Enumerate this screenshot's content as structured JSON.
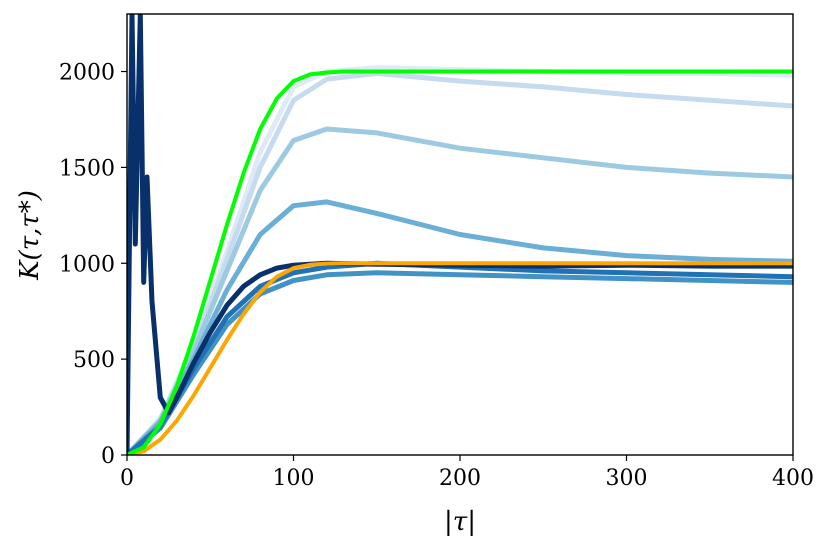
{
  "chart_data": {
    "type": "line",
    "xlabel": "|τ|",
    "ylabel": "K(τ,τ*)",
    "xlim": [
      0,
      400
    ],
    "ylim": [
      0,
      2300
    ],
    "x_ticks": [
      "0",
      "100",
      "200",
      "300",
      "400"
    ],
    "y_ticks": [
      "0",
      "500",
      "1000",
      "1500",
      "2000"
    ],
    "grid": false,
    "legend": "none",
    "series": [
      {
        "color": "#00ff00",
        "x": [
          0,
          10,
          20,
          30,
          40,
          50,
          60,
          70,
          80,
          90,
          100,
          110,
          120,
          130,
          140,
          150,
          200,
          250,
          300,
          350,
          400
        ],
        "values": [
          0,
          40,
          160,
          360,
          620,
          910,
          1200,
          1470,
          1700,
          1860,
          1950,
          1985,
          1995,
          2000,
          2000,
          2000,
          2000,
          2000,
          2000,
          2000,
          2000
        ]
      },
      {
        "color": "#ffa500",
        "x": [
          0,
          10,
          20,
          30,
          40,
          50,
          60,
          70,
          80,
          90,
          100,
          110,
          120,
          130,
          140,
          150,
          200,
          250,
          300,
          350,
          400
        ],
        "values": [
          0,
          20,
          80,
          180,
          310,
          455,
          600,
          735,
          850,
          930,
          975,
          992,
          998,
          1000,
          1000,
          1000,
          1000,
          1000,
          1000,
          1000,
          1000
        ]
      },
      {
        "color": "#08306b",
        "x": [
          0,
          3,
          5,
          8,
          10,
          12,
          15,
          20,
          25,
          30,
          40,
          50,
          60,
          70,
          80,
          90,
          100,
          120,
          150,
          200,
          250,
          300,
          350,
          400
        ],
        "values": [
          0,
          2300,
          1100,
          2300,
          900,
          1450,
          800,
          300,
          220,
          300,
          480,
          640,
          780,
          880,
          940,
          975,
          990,
          1000,
          995,
          990,
          985,
          990,
          985,
          985
        ]
      },
      {
        "color": "#2171b5",
        "x": [
          0,
          20,
          40,
          60,
          80,
          100,
          120,
          150,
          200,
          250,
          300,
          350,
          400
        ],
        "values": [
          0,
          150,
          450,
          720,
          880,
          950,
          980,
          1000,
          980,
          960,
          950,
          940,
          930
        ]
      },
      {
        "color": "#4292c6",
        "x": [
          0,
          20,
          40,
          60,
          80,
          100,
          120,
          150,
          200,
          250,
          300,
          350,
          400
        ],
        "values": [
          0,
          140,
          420,
          680,
          840,
          910,
          940,
          950,
          940,
          930,
          920,
          910,
          900
        ]
      },
      {
        "color": "#6baed6",
        "x": [
          0,
          20,
          40,
          60,
          80,
          100,
          120,
          150,
          200,
          250,
          300,
          350,
          400
        ],
        "values": [
          0,
          170,
          500,
          860,
          1150,
          1300,
          1320,
          1260,
          1150,
          1080,
          1040,
          1020,
          1010
        ]
      },
      {
        "color": "#9ecae1",
        "x": [
          0,
          20,
          40,
          60,
          80,
          100,
          120,
          150,
          200,
          250,
          300,
          350,
          400
        ],
        "values": [
          0,
          180,
          540,
          960,
          1380,
          1640,
          1700,
          1680,
          1600,
          1550,
          1500,
          1470,
          1450
        ]
      },
      {
        "color": "#c6dbef",
        "x": [
          0,
          20,
          40,
          60,
          80,
          100,
          120,
          150,
          200,
          250,
          300,
          350,
          400
        ],
        "values": [
          0,
          185,
          560,
          1020,
          1500,
          1850,
          1960,
          1990,
          1950,
          1920,
          1880,
          1850,
          1820
        ]
      },
      {
        "color": "#deebf7",
        "x": [
          0,
          20,
          40,
          60,
          80,
          100,
          120,
          150,
          200,
          250,
          300,
          350,
          400
        ],
        "values": [
          0,
          190,
          580,
          1060,
          1580,
          1920,
          2000,
          2020,
          2010,
          2000,
          1990,
          1990,
          1980
        ]
      }
    ]
  }
}
